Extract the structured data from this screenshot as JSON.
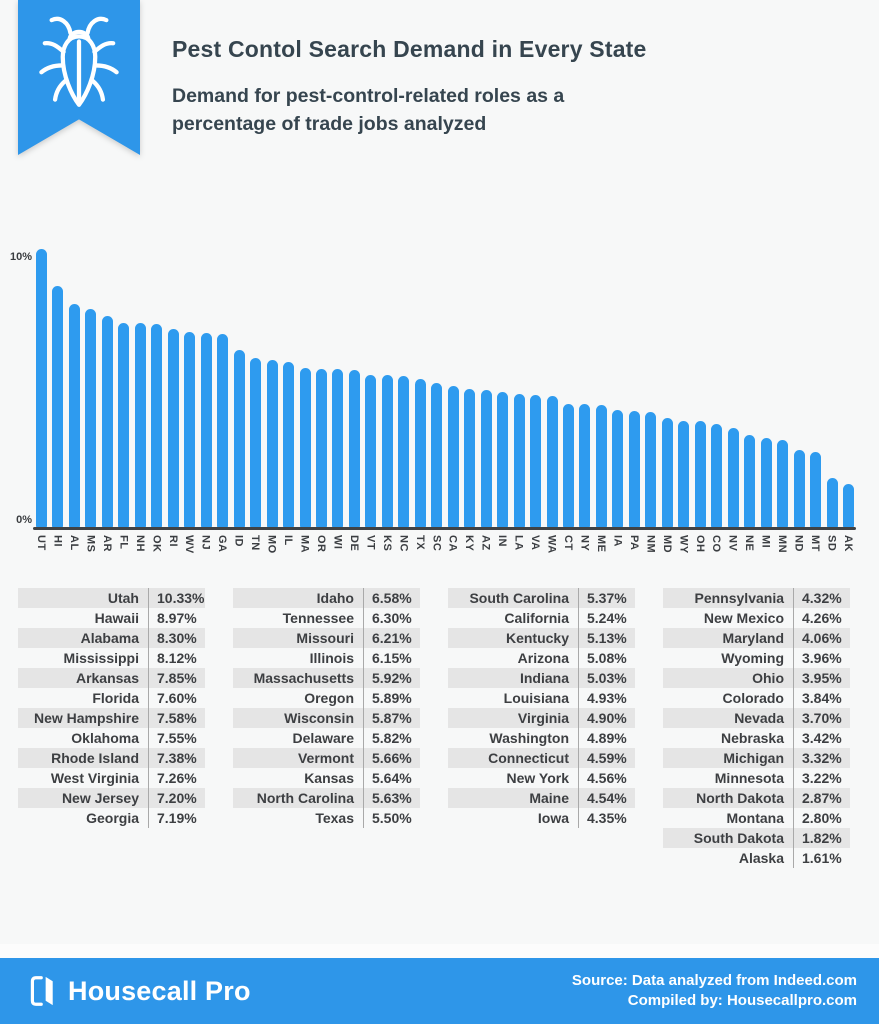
{
  "header": {
    "title": "Pest Contol Search Demand in Every State",
    "subtitle_line1": "Demand for pest-control-related roles as a",
    "subtitle_line2": "percentage of trade jobs analyzed",
    "ribbon_icon": "bug-icon"
  },
  "colors": {
    "accent_blue": "#2e96e9",
    "bar_blue": "#2e9bef",
    "title_text": "#36454f",
    "table_text": "#3d3f42",
    "row_stripe": "#e5e5e5",
    "page_bg": "#f7f8f8"
  },
  "chart_data": {
    "type": "bar",
    "title": "Pest Contol Search Demand in Every State",
    "xlabel": "",
    "ylabel": "",
    "y_axis_labels": [
      "10%",
      "0%"
    ],
    "ylim": [
      0,
      10.5
    ],
    "grid": false,
    "legend": "none",
    "bar_color": "#2e9bef",
    "categories": [
      "UT",
      "HI",
      "AL",
      "MS",
      "AR",
      "FL",
      "NH",
      "OK",
      "RI",
      "WV",
      "NJ",
      "GA",
      "ID",
      "TN",
      "MO",
      "IL",
      "MA",
      "OR",
      "WI",
      "DE",
      "VT",
      "KS",
      "NC",
      "TX",
      "SC",
      "CA",
      "KY",
      "AZ",
      "IN",
      "LA",
      "VA",
      "WA",
      "CT",
      "NY",
      "ME",
      "IA",
      "PA",
      "NM",
      "MD",
      "WY",
      "OH",
      "CO",
      "NV",
      "NE",
      "MI",
      "MN",
      "ND",
      "MT",
      "SD",
      "AK"
    ],
    "values": [
      10.33,
      8.97,
      8.3,
      8.12,
      7.85,
      7.6,
      7.58,
      7.55,
      7.38,
      7.26,
      7.2,
      7.19,
      6.58,
      6.3,
      6.21,
      6.15,
      5.92,
      5.89,
      5.87,
      5.82,
      5.66,
      5.64,
      5.63,
      5.5,
      5.37,
      5.24,
      5.13,
      5.08,
      5.03,
      4.93,
      4.9,
      4.89,
      4.59,
      4.56,
      4.54,
      4.35,
      4.32,
      4.26,
      4.06,
      3.96,
      3.95,
      3.84,
      3.7,
      3.42,
      3.32,
      3.22,
      2.87,
      2.8,
      1.82,
      1.61
    ]
  },
  "tables": {
    "columns": [
      {
        "rows": [
          [
            "Utah",
            "10.33%"
          ],
          [
            "Hawaii",
            "8.97%"
          ],
          [
            "Alabama",
            "8.30%"
          ],
          [
            "Mississippi",
            "8.12%"
          ],
          [
            "Arkansas",
            "7.85%"
          ],
          [
            "Florida",
            "7.60%"
          ],
          [
            "New Hampshire",
            "7.58%"
          ],
          [
            "Oklahoma",
            "7.55%"
          ],
          [
            "Rhode Island",
            "7.38%"
          ],
          [
            "West Virginia",
            "7.26%"
          ],
          [
            "New Jersey",
            "7.20%"
          ],
          [
            "Georgia",
            "7.19%"
          ]
        ]
      },
      {
        "rows": [
          [
            "Idaho",
            "6.58%"
          ],
          [
            "Tennessee",
            "6.30%"
          ],
          [
            "Missouri",
            "6.21%"
          ],
          [
            "Illinois",
            "6.15%"
          ],
          [
            "Massachusetts",
            "5.92%"
          ],
          [
            "Oregon",
            "5.89%"
          ],
          [
            "Wisconsin",
            "5.87%"
          ],
          [
            "Delaware",
            "5.82%"
          ],
          [
            "Vermont",
            "5.66%"
          ],
          [
            "Kansas",
            "5.64%"
          ],
          [
            "North Carolina",
            "5.63%"
          ],
          [
            "Texas",
            "5.50%"
          ]
        ]
      },
      {
        "rows": [
          [
            "South Carolina",
            "5.37%"
          ],
          [
            "California",
            "5.24%"
          ],
          [
            "Kentucky",
            "5.13%"
          ],
          [
            "Arizona",
            "5.08%"
          ],
          [
            "Indiana",
            "5.03%"
          ],
          [
            "Louisiana",
            "4.93%"
          ],
          [
            "Virginia",
            "4.90%"
          ],
          [
            "Washington",
            "4.89%"
          ],
          [
            "Connecticut",
            "4.59%"
          ],
          [
            "New York",
            "4.56%"
          ],
          [
            "Maine",
            "4.54%"
          ],
          [
            "Iowa",
            "4.35%"
          ]
        ]
      },
      {
        "rows": [
          [
            "Pennsylvania",
            "4.32%"
          ],
          [
            "New Mexico",
            "4.26%"
          ],
          [
            "Maryland",
            "4.06%"
          ],
          [
            "Wyoming",
            "3.96%"
          ],
          [
            "Ohio",
            "3.95%"
          ],
          [
            "Colorado",
            "3.84%"
          ],
          [
            "Nevada",
            "3.70%"
          ],
          [
            "Nebraska",
            "3.42%"
          ],
          [
            "Michigan",
            "3.32%"
          ],
          [
            "Minnesota",
            "3.22%"
          ],
          [
            "North Dakota",
            "2.87%"
          ],
          [
            "Montana",
            "2.80%"
          ],
          [
            "South Dakota",
            "1.82%"
          ],
          [
            "Alaska",
            "1.61%"
          ]
        ]
      }
    ]
  },
  "footer": {
    "logo_text": "Housecall Pro",
    "source_line1": "Source: Data analyzed from Indeed.com",
    "source_line2": "Compiled by: Housecallpro.com"
  }
}
